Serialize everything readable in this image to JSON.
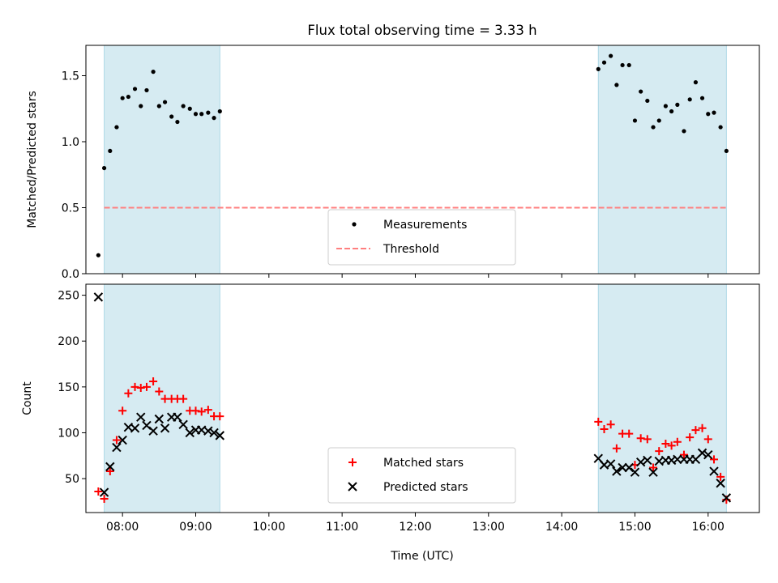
{
  "title": "Flux total observing time = 3.33 h",
  "colors": {
    "band": "#add8e6",
    "threshold": "#ff7f7f",
    "measurement": "#000000",
    "matched": "#ff0000",
    "predicted": "#000000"
  },
  "chart_data": [
    {
      "type": "scatter",
      "id": "ratio",
      "ylabel": "Matched/Predicted stars",
      "xlim": [
        7.5,
        16.7
      ],
      "ylim": [
        0,
        1.73
      ],
      "yticks": [
        0,
        0.5,
        1.0,
        1.5
      ],
      "ytick_labels": [
        "0.0",
        "0.5",
        "1.0",
        "1.5"
      ],
      "shaded_intervals": [
        [
          7.75,
          9.33
        ],
        [
          14.5,
          16.25
        ]
      ],
      "threshold": {
        "label": "Threshold",
        "value": 0.5,
        "x_range": [
          7.75,
          16.25
        ]
      },
      "legend": {
        "position": "lower-center",
        "entries": [
          "Measurements",
          "Threshold"
        ]
      },
      "series": [
        {
          "name": "Measurements",
          "x": [
            7.67,
            7.75,
            7.83,
            7.92,
            8.0,
            8.08,
            8.17,
            8.25,
            8.33,
            8.42,
            8.5,
            8.58,
            8.67,
            8.75,
            8.83,
            8.92,
            9.0,
            9.08,
            9.17,
            9.25,
            9.33,
            14.5,
            14.58,
            14.67,
            14.75,
            14.83,
            14.92,
            15.0,
            15.08,
            15.17,
            15.25,
            15.33,
            15.42,
            15.5,
            15.58,
            15.67,
            15.75,
            15.83,
            15.92,
            16.0,
            16.08,
            16.17,
            16.25
          ],
          "values": [
            0.14,
            0.8,
            0.93,
            1.11,
            1.33,
            1.34,
            1.4,
            1.27,
            1.39,
            1.53,
            1.27,
            1.3,
            1.19,
            1.15,
            1.27,
            1.25,
            1.21,
            1.21,
            1.22,
            1.18,
            1.23,
            1.55,
            1.6,
            1.65,
            1.43,
            1.58,
            1.58,
            1.16,
            1.38,
            1.31,
            1.11,
            1.16,
            1.27,
            1.23,
            1.28,
            1.08,
            1.32,
            1.45,
            1.33,
            1.21,
            1.22,
            1.11,
            0.93
          ]
        }
      ]
    },
    {
      "type": "scatter",
      "id": "count",
      "xlabel": "Time (UTC)",
      "ylabel": "Count",
      "xlim": [
        7.5,
        16.7
      ],
      "ylim": [
        13,
        262
      ],
      "xticks": [
        8,
        9,
        10,
        11,
        12,
        13,
        14,
        15,
        16
      ],
      "xtick_labels": [
        "08:00",
        "09:00",
        "10:00",
        "11:00",
        "12:00",
        "13:00",
        "14:00",
        "15:00",
        "16:00"
      ],
      "yticks": [
        50,
        100,
        150,
        200,
        250
      ],
      "ytick_labels": [
        "50",
        "100",
        "150",
        "200",
        "250"
      ],
      "shaded_intervals": [
        [
          7.75,
          9.33
        ],
        [
          14.5,
          16.25
        ]
      ],
      "legend": {
        "position": "lower-center",
        "entries": [
          "Matched stars",
          "Predicted stars"
        ]
      },
      "series": [
        {
          "name": "Matched stars",
          "marker": "plus",
          "x": [
            7.67,
            7.75,
            7.83,
            7.92,
            8.0,
            8.08,
            8.17,
            8.25,
            8.33,
            8.42,
            8.5,
            8.58,
            8.67,
            8.75,
            8.83,
            8.92,
            9.0,
            9.08,
            9.17,
            9.25,
            9.33,
            14.5,
            14.58,
            14.67,
            14.75,
            14.83,
            14.92,
            15.0,
            15.08,
            15.17,
            15.25,
            15.33,
            15.42,
            15.5,
            15.58,
            15.67,
            15.75,
            15.83,
            15.92,
            16.0,
            16.08,
            16.17,
            16.25
          ],
          "values": [
            36,
            28,
            58,
            92,
            124,
            143,
            150,
            149,
            150,
            156,
            145,
            137,
            137,
            137,
            137,
            124,
            124,
            123,
            125,
            118,
            118,
            112,
            104,
            109,
            83,
            99,
            99,
            65,
            94,
            93,
            62,
            80,
            88,
            86,
            90,
            76,
            95,
            103,
            105,
            93,
            71,
            52,
            27
          ]
        },
        {
          "name": "Predicted stars",
          "marker": "x",
          "x": [
            7.67,
            7.75,
            7.83,
            7.92,
            8.0,
            8.08,
            8.17,
            8.25,
            8.33,
            8.42,
            8.5,
            8.58,
            8.67,
            8.75,
            8.83,
            8.92,
            9.0,
            9.08,
            9.17,
            9.25,
            9.33,
            14.5,
            14.58,
            14.67,
            14.75,
            14.83,
            14.92,
            15.0,
            15.08,
            15.17,
            15.25,
            15.33,
            15.42,
            15.5,
            15.58,
            15.67,
            15.75,
            15.83,
            15.92,
            16.0,
            16.08,
            16.17,
            16.25
          ],
          "values": [
            248,
            35,
            63,
            84,
            92,
            106,
            105,
            117,
            108,
            102,
            115,
            105,
            117,
            117,
            109,
            100,
            103,
            103,
            102,
            100,
            97,
            72,
            65,
            66,
            58,
            62,
            62,
            57,
            68,
            70,
            57,
            69,
            70,
            70,
            71,
            71,
            71,
            71,
            78,
            76,
            58,
            45,
            29
          ]
        }
      ]
    }
  ]
}
